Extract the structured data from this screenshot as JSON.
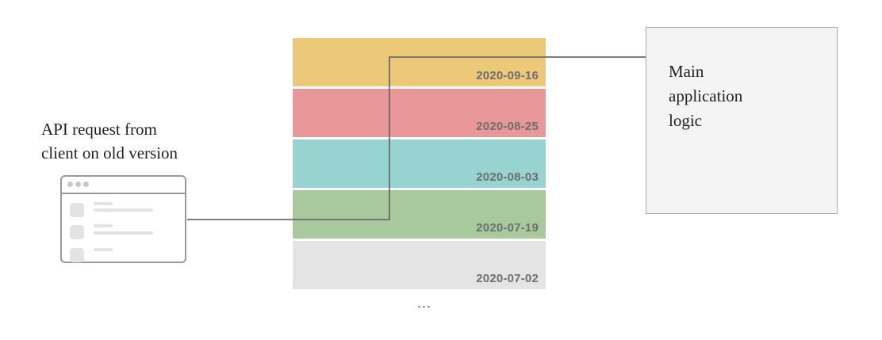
{
  "client": {
    "caption_line1": "API request from",
    "caption_line2": "client on old version"
  },
  "versions": [
    {
      "date": "2020-09-16",
      "color": "#ecc978"
    },
    {
      "date": "2020-08-25",
      "color": "#e89899"
    },
    {
      "date": "2020-08-03",
      "color": "#97d3d1"
    },
    {
      "date": "2020-07-19",
      "color": "#a8c99e"
    },
    {
      "date": "2020-07-02",
      "color": "#e4e4e4"
    }
  ],
  "ellipsis": "...",
  "main_logic": {
    "line1": "Main",
    "line2": "application",
    "line3": "logic"
  },
  "colors": {
    "connector": "#6a6a6a",
    "window_border": "#9a9a9a"
  }
}
